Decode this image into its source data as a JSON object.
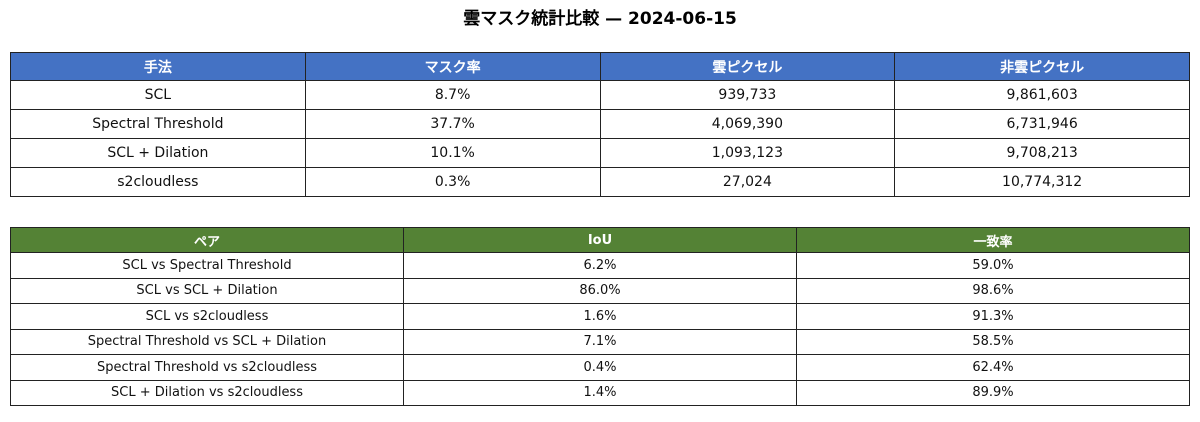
{
  "title": "雲マスク統計比較 — 2024-06-15",
  "table1": {
    "headers": [
      "手法",
      "マスク率",
      "雲ピクセル",
      "非雲ピクセル"
    ],
    "rows": [
      [
        "SCL",
        "8.7%",
        "939,733",
        "9,861,603"
      ],
      [
        "Spectral Threshold",
        "37.7%",
        "4,069,390",
        "6,731,946"
      ],
      [
        "SCL + Dilation",
        "10.1%",
        "1,093,123",
        "9,708,213"
      ],
      [
        "s2cloudless",
        "0.3%",
        "27,024",
        "10,774,312"
      ]
    ]
  },
  "table2": {
    "headers": [
      "ペア",
      "IoU",
      "一致率"
    ],
    "rows": [
      [
        "SCL vs Spectral Threshold",
        "6.2%",
        "59.0%"
      ],
      [
        "SCL vs SCL + Dilation",
        "86.0%",
        "98.6%"
      ],
      [
        "SCL vs s2cloudless",
        "1.6%",
        "91.3%"
      ],
      [
        "Spectral Threshold vs SCL + Dilation",
        "7.1%",
        "58.5%"
      ],
      [
        "Spectral Threshold vs s2cloudless",
        "0.4%",
        "62.4%"
      ],
      [
        "SCL + Dilation vs s2cloudless",
        "1.4%",
        "89.9%"
      ]
    ]
  }
}
